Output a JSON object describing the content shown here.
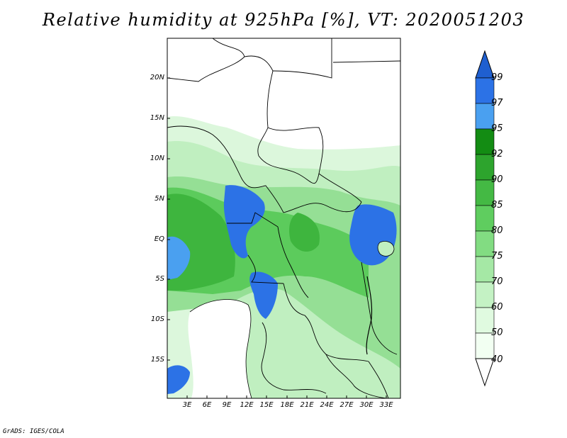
{
  "title": "Relative humidity at 925hPa [%], VT: 2020051203",
  "footer": "GrADS: IGES/COLA",
  "map": {
    "lat_labels": [
      "20N",
      "15N",
      "10N",
      "5N",
      "EQ",
      "5S",
      "10S",
      "15S"
    ],
    "lon_labels": [
      "3E",
      "6E",
      "9E",
      "12E",
      "15E",
      "18E",
      "21E",
      "24E",
      "27E",
      "30E",
      "33E"
    ],
    "extent": {
      "lon_min": 0,
      "lon_max": 35,
      "lat_min": -19.5,
      "lat_max": 25
    }
  },
  "colorbar": {
    "labels": [
      "99",
      "97",
      "95",
      "92",
      "90",
      "85",
      "80",
      "75",
      "70",
      "60",
      "50",
      "40"
    ],
    "colors": [
      "#1f5fd0",
      "#2c72e6",
      "#4aa0f0",
      "#138c13",
      "#2da42d",
      "#44b944",
      "#5fcd5f",
      "#82dc82",
      "#a5e8a5",
      "#c4f2c4",
      "#e0fae0",
      "#f2fff2"
    ]
  },
  "colors": {
    "ocean": "#ffffff",
    "border": "#000000",
    "very_wet": "#2c72e6",
    "wet": "#3aa53a",
    "dry": "#e8fbe8"
  }
}
